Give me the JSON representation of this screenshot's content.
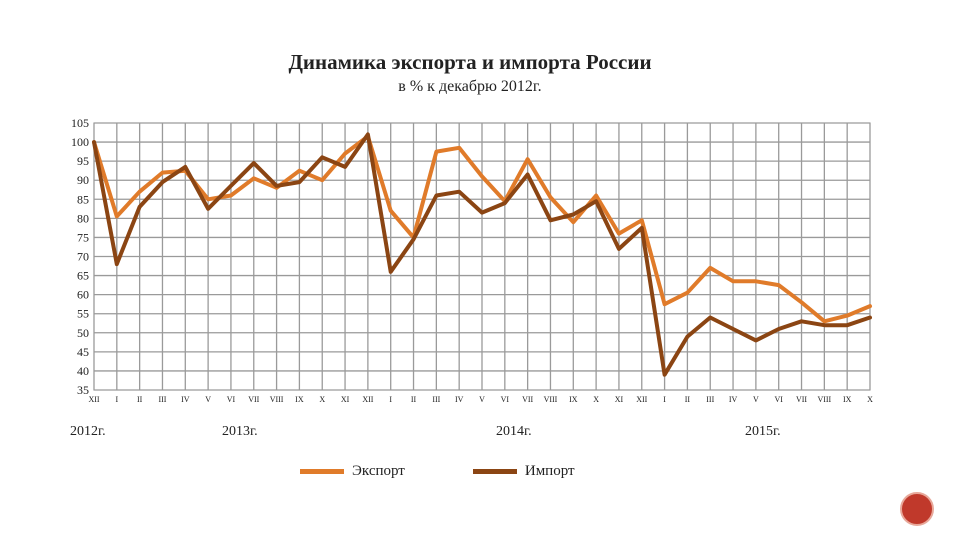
{
  "chart_data": {
    "type": "line",
    "title": "Динамика экспорта и импорта России",
    "subtitle": "в % к декабрю 2012г.",
    "ylim": [
      35,
      105
    ],
    "yticks": [
      35,
      40,
      45,
      50,
      55,
      60,
      65,
      70,
      75,
      80,
      85,
      90,
      95,
      100,
      105
    ],
    "grid": true,
    "legend_position": "bottom",
    "x": [
      "XII",
      "I",
      "II",
      "III",
      "IV",
      "V",
      "VI",
      "VII",
      "VIII",
      "IX",
      "X",
      "XI",
      "XII",
      "I",
      "II",
      "III",
      "IV",
      "V",
      "VI",
      "VII",
      "VIII",
      "IX",
      "X",
      "XI",
      "XII",
      "I",
      "II",
      "III",
      "IV",
      "V",
      "VI",
      "VII",
      "VIII",
      "IX",
      "X"
    ],
    "year_labels": [
      "2012г.",
      "2013г.",
      "2014г.",
      "2015г."
    ],
    "series": [
      {
        "name": "Экспорт",
        "color": "#e07b2a",
        "values": [
          100,
          80.5,
          87,
          92,
          92.5,
          85,
          86,
          90.5,
          88,
          92.5,
          90,
          97,
          101.5,
          82,
          75,
          97.5,
          98.5,
          91,
          84.5,
          95.5,
          85.5,
          79,
          86,
          76,
          79.5,
          57.5,
          60.5,
          67,
          63.5,
          63.5,
          62.5,
          58,
          53,
          54.5,
          57
        ]
      },
      {
        "name": "Импорт",
        "color": "#8b4513",
        "values": [
          100,
          68,
          83,
          89.5,
          93.5,
          82.5,
          88.5,
          94.5,
          88.5,
          89.5,
          96,
          93.5,
          102,
          66,
          74.5,
          86,
          87,
          81.5,
          84,
          91.5,
          79.5,
          81,
          84.5,
          72,
          77.5,
          39,
          49,
          54,
          51,
          48,
          51,
          53,
          52,
          52,
          54
        ]
      }
    ]
  }
}
